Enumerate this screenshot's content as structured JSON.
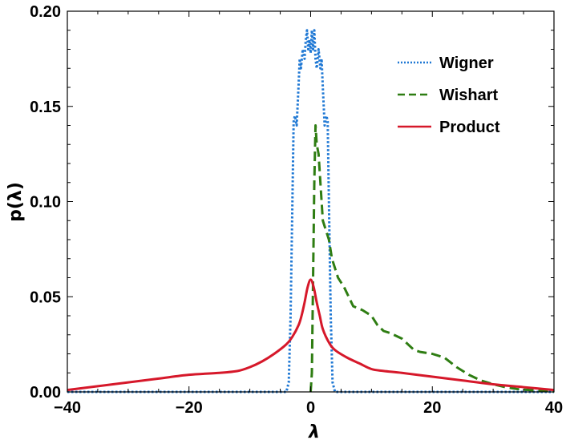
{
  "chart_data": {
    "type": "line",
    "xlabel": "λ",
    "ylabel": "p(λ)",
    "xlim": [
      -40,
      40
    ],
    "ylim": [
      0,
      0.2
    ],
    "xticks": [
      -40,
      -20,
      0,
      20,
      40
    ],
    "xtick_labels": [
      "−40",
      "−20",
      "0",
      "20",
      "40"
    ],
    "yticks": [
      0,
      0.05,
      0.1,
      0.15,
      0.2
    ],
    "ytick_labels": [
      "0.00",
      "0.05",
      "0.10",
      "0.15",
      "0.20"
    ],
    "legend_position": "top-right",
    "series": [
      {
        "name": "Wigner",
        "color": "#1f78d4",
        "style": "dotted",
        "x": [
          -40,
          -4,
          -3.6,
          -3.3,
          -3.0,
          -2.8,
          -2.6,
          -2.3,
          -2.0,
          -1.8,
          -1.6,
          -1.3,
          -1.0,
          -0.8,
          -0.6,
          -0.4,
          -0.2,
          0,
          0.2,
          0.4,
          0.6,
          0.8,
          1.0,
          1.3,
          1.6,
          1.8,
          2.0,
          2.3,
          2.6,
          2.8,
          3.0,
          3.3,
          3.6,
          4,
          40
        ],
        "y": [
          0,
          0,
          0.005,
          0.04,
          0.1,
          0.142,
          0.145,
          0.14,
          0.16,
          0.175,
          0.17,
          0.18,
          0.175,
          0.185,
          0.19,
          0.18,
          0.185,
          0.178,
          0.19,
          0.18,
          0.19,
          0.175,
          0.17,
          0.18,
          0.17,
          0.175,
          0.16,
          0.14,
          0.145,
          0.142,
          0.1,
          0.04,
          0.005,
          0,
          0
        ]
      },
      {
        "name": "Wishart",
        "color": "#2e7d12",
        "style": "dashed",
        "x": [
          0,
          0.2,
          0.4,
          0.6,
          0.8,
          1.0,
          1.3,
          1.6,
          2.0,
          2.5,
          3.0,
          3.5,
          4.5,
          5.5,
          7,
          8.5,
          10,
          11,
          12,
          13,
          15,
          17,
          18,
          20,
          22,
          24,
          26,
          28,
          30,
          32,
          34,
          36,
          38,
          40
        ],
        "y": [
          0,
          0.01,
          0.06,
          0.11,
          0.14,
          0.13,
          0.125,
          0.11,
          0.09,
          0.085,
          0.08,
          0.07,
          0.06,
          0.055,
          0.045,
          0.043,
          0.04,
          0.035,
          0.032,
          0.031,
          0.028,
          0.022,
          0.021,
          0.02,
          0.018,
          0.013,
          0.009,
          0.006,
          0.004,
          0.0025,
          0.0015,
          0.001,
          0.0005,
          0.0002
        ]
      },
      {
        "name": "Product",
        "color": "#d6182a",
        "style": "solid",
        "x": [
          -40,
          -35,
          -30,
          -25,
          -20,
          -15,
          -12,
          -10,
          -8,
          -6,
          -4,
          -3,
          -2,
          -1.5,
          -1,
          -0.5,
          0,
          0.5,
          1,
          1.5,
          2,
          3,
          4,
          6,
          8,
          10,
          12,
          15,
          20,
          25,
          30,
          35,
          40
        ],
        "y": [
          0.001,
          0.003,
          0.005,
          0.007,
          0.009,
          0.01,
          0.011,
          0.013,
          0.016,
          0.02,
          0.025,
          0.029,
          0.035,
          0.04,
          0.047,
          0.055,
          0.059,
          0.055,
          0.047,
          0.04,
          0.033,
          0.026,
          0.022,
          0.018,
          0.015,
          0.012,
          0.011,
          0.01,
          0.008,
          0.006,
          0.004,
          0.0025,
          0.001
        ]
      }
    ]
  }
}
